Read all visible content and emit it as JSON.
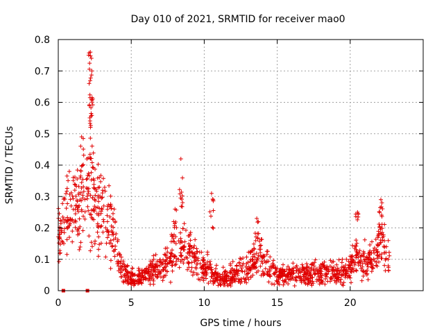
{
  "chart_data": {
    "type": "scatter",
    "title": "Day 010 of 2021, SRMTID for receiver mao0",
    "xlabel": "GPS time / hours",
    "ylabel": "SRMTID / TECUs",
    "xlim": [
      0,
      25
    ],
    "ylim": [
      0,
      0.8
    ],
    "xticks": [
      "0",
      "5",
      "10",
      "15",
      "20"
    ],
    "yticks": [
      "0",
      "0.1",
      "0.2",
      "0.3",
      "0.4",
      "0.5",
      "0.6",
      "0.7",
      "0.8"
    ],
    "grid": true,
    "marker": "+",
    "color": "#e00000",
    "envelope": {
      "x": [
        0,
        0.3,
        0.6,
        1.0,
        1.5,
        1.8,
        2.1,
        2.3,
        2.5,
        2.8,
        3.0,
        3.5,
        4.0,
        4.3,
        4.6,
        5.0,
        5.5,
        6.0,
        6.5,
        7.0,
        7.5,
        8.0,
        8.3,
        8.6,
        9.0,
        9.5,
        10.0,
        10.3,
        10.6,
        11.0,
        11.5,
        12.0,
        12.5,
        13.0,
        13.5,
        13.8,
        14.2,
        15.0,
        16.0,
        17.0,
        18.0,
        19.0,
        20.0,
        20.4,
        20.8,
        21.5,
        22.0,
        22.2,
        22.4,
        22.7
      ],
      "y": [
        0.17,
        0.2,
        0.24,
        0.27,
        0.26,
        0.28,
        0.3,
        0.32,
        0.28,
        0.25,
        0.24,
        0.2,
        0.15,
        0.08,
        0.05,
        0.04,
        0.04,
        0.05,
        0.06,
        0.07,
        0.1,
        0.12,
        0.13,
        0.14,
        0.12,
        0.09,
        0.07,
        0.08,
        0.05,
        0.04,
        0.04,
        0.05,
        0.06,
        0.08,
        0.1,
        0.12,
        0.08,
        0.05,
        0.05,
        0.05,
        0.06,
        0.06,
        0.07,
        0.11,
        0.09,
        0.1,
        0.14,
        0.2,
        0.1,
        0.09
      ]
    },
    "peaks": [
      {
        "x": 1.6,
        "ymin": 0.38,
        "ymax": 0.49
      },
      {
        "x": 2.2,
        "ymin": 0.5,
        "ymax": 0.76
      },
      {
        "x": 2.3,
        "ymin": 0.35,
        "ymax": 0.7
      },
      {
        "x": 8.0,
        "ymin": 0.2,
        "ymax": 0.26
      },
      {
        "x": 8.4,
        "ymin": 0.25,
        "ymax": 0.42
      },
      {
        "x": 10.5,
        "ymin": 0.18,
        "ymax": 0.31
      },
      {
        "x": 13.6,
        "ymin": 0.15,
        "ymax": 0.23
      },
      {
        "x": 20.5,
        "ymin": 0.18,
        "ymax": 0.25
      },
      {
        "x": 22.1,
        "ymin": 0.2,
        "ymax": 0.29
      }
    ],
    "zero_points": {
      "x": [
        0.35,
        2.0
      ],
      "y": [
        0,
        0
      ]
    }
  }
}
